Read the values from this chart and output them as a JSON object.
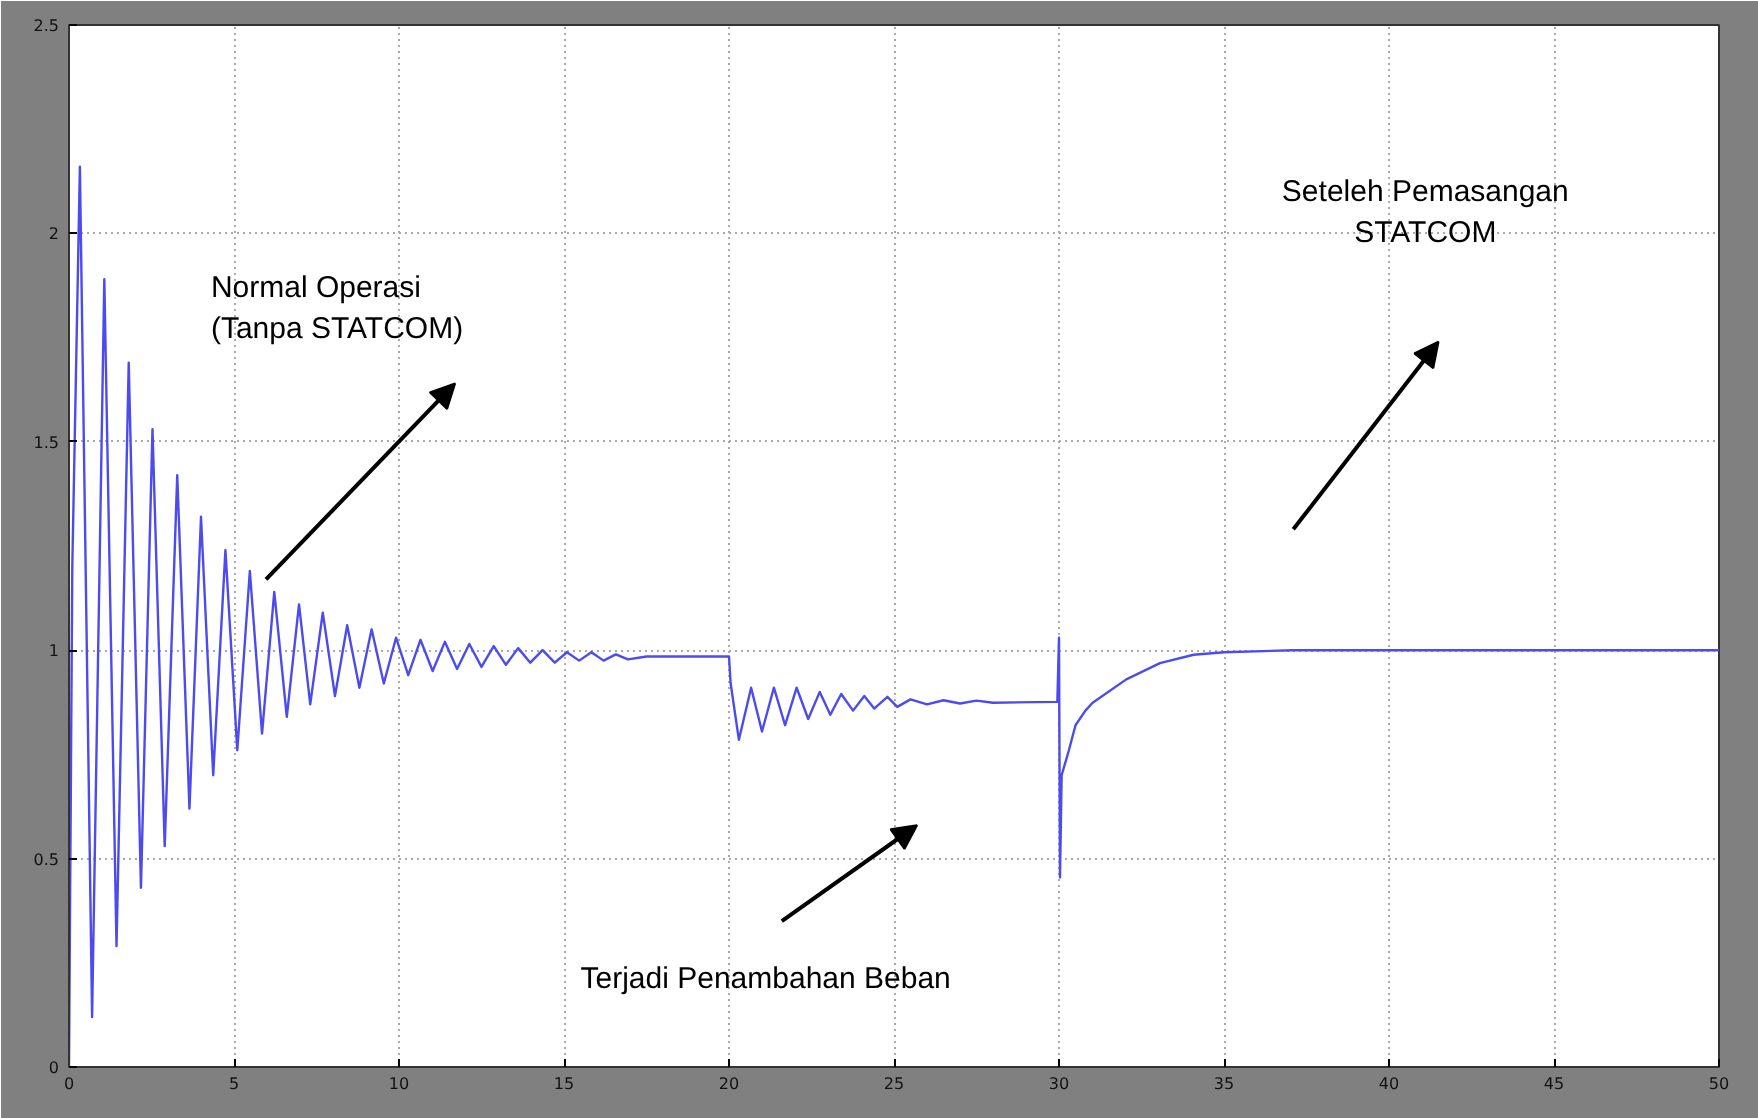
{
  "chart_data": {
    "type": "line",
    "xlim": [
      0,
      50
    ],
    "ylim": [
      0,
      2.5
    ],
    "xticks": [
      0,
      5,
      10,
      15,
      20,
      25,
      30,
      35,
      40,
      45,
      50
    ],
    "yticks": [
      0,
      0.5,
      1,
      1.5,
      2,
      2.5
    ],
    "grid": true,
    "line_style": "solid",
    "series": [
      {
        "color": "#4b4bf0",
        "x": [
          0,
          0.1,
          0.33,
          0.7,
          1.07,
          1.44,
          1.81,
          2.18,
          2.53,
          2.9,
          3.28,
          3.65,
          4.0,
          4.37,
          4.74,
          5.1,
          5.48,
          5.85,
          6.22,
          6.6,
          6.97,
          7.31,
          7.69,
          8.06,
          8.43,
          8.8,
          9.17,
          9.54,
          9.91,
          10.28,
          10.65,
          11.02,
          11.39,
          11.76,
          12.13,
          12.5,
          12.87,
          13.24,
          13.61,
          13.98,
          14.35,
          14.72,
          15.09,
          15.46,
          15.83,
          16.2,
          16.57,
          16.94,
          17.5,
          20.0,
          20.05,
          20.3,
          20.67,
          21.0,
          21.36,
          21.7,
          22.05,
          22.4,
          22.75,
          23.07,
          23.4,
          23.76,
          24.1,
          24.4,
          24.8,
          25.1,
          25.5,
          26.0,
          26.5,
          27.0,
          27.5,
          28.0,
          29.95,
          30.0,
          30.03,
          30.08,
          30.3,
          30.5,
          30.8,
          31.02,
          32.04,
          33.06,
          34.08,
          35.0,
          37.1,
          50.0
        ],
        "values": [
          0,
          1.2,
          2.16,
          0.12,
          1.89,
          0.29,
          1.69,
          0.43,
          1.53,
          0.53,
          1.42,
          0.62,
          1.32,
          0.7,
          1.24,
          0.76,
          1.19,
          0.8,
          1.14,
          0.84,
          1.11,
          0.87,
          1.09,
          0.89,
          1.06,
          0.91,
          1.05,
          0.92,
          1.03,
          0.94,
          1.025,
          0.95,
          1.02,
          0.955,
          1.015,
          0.96,
          1.01,
          0.965,
          1.005,
          0.97,
          1.0,
          0.97,
          0.995,
          0.975,
          0.995,
          0.975,
          0.99,
          0.978,
          0.985,
          0.985,
          0.92,
          0.785,
          0.91,
          0.805,
          0.91,
          0.82,
          0.91,
          0.835,
          0.9,
          0.845,
          0.895,
          0.855,
          0.89,
          0.86,
          0.888,
          0.864,
          0.882,
          0.87,
          0.88,
          0.872,
          0.879,
          0.874,
          0.876,
          1.03,
          0.455,
          0.7,
          0.76,
          0.82,
          0.855,
          0.874,
          0.93,
          0.969,
          0.989,
          0.995,
          1.0,
          1.0
        ]
      }
    ],
    "annotations": [
      "Normal Operasi\n(Tanpa STATCOM)",
      "Terjadi Penambahan Beban",
      "Seteleh Pemasangan\nSTATCOM"
    ]
  }
}
